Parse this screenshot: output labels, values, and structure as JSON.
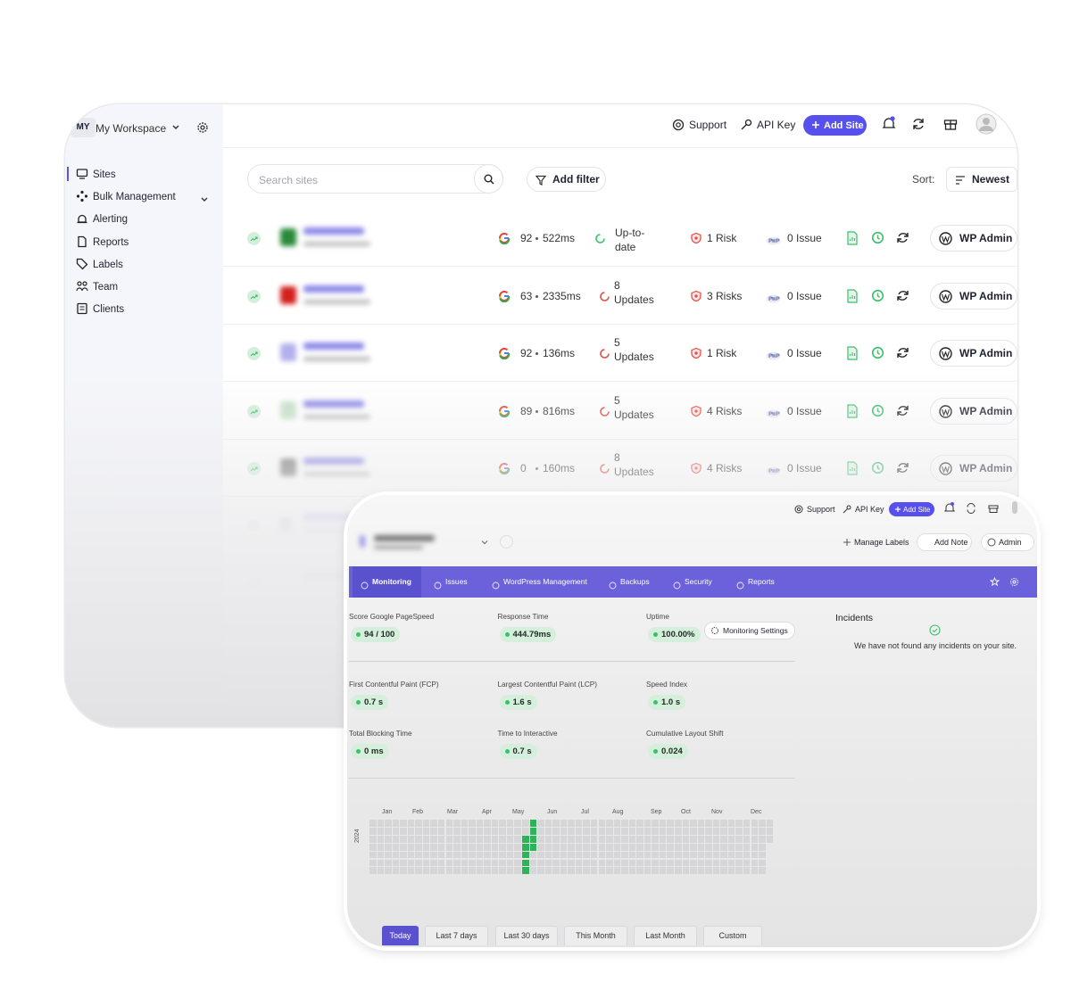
{
  "sidebar": {
    "workspace_badge": "MY",
    "workspace": "My Workspace",
    "nav": [
      "Sites",
      "Bulk Management",
      "Alerting",
      "Reports",
      "Labels",
      "Team",
      "Clients"
    ]
  },
  "topbar": {
    "support": "Support",
    "api_key": "API Key",
    "add_site": "Add Site"
  },
  "toolbar": {
    "search_placeholder": "Search sites",
    "add_filter": "Add filter",
    "sort_label": "Sort:",
    "sort_value": "Newest"
  },
  "sites": [
    {
      "pagespeed": 92,
      "response": "522ms",
      "updates": "Up-to-date",
      "risks": "1 Risk",
      "php": "0 Issue",
      "action": "WP Admin"
    },
    {
      "pagespeed": 63,
      "response": "2335ms",
      "updates": "8 Updates",
      "risks": "3 Risks",
      "php": "0 Issue",
      "action": "WP Admin"
    },
    {
      "pagespeed": 92,
      "response": "136ms",
      "updates": "5 Updates",
      "risks": "1 Risk",
      "php": "0 Issue",
      "action": "WP Admin"
    },
    {
      "pagespeed": 89,
      "response": "816ms",
      "updates": "5 Updates",
      "risks": "4 Risks",
      "php": "0 Issue",
      "action": "WP Admin"
    },
    {
      "pagespeed": 0,
      "response": "160ms",
      "updates": "8 Updates",
      "risks": "4 Risks",
      "php": "0 Issue",
      "action": "WP Admin"
    }
  ],
  "detail": {
    "topbar": {
      "support": "Support",
      "api_key": "API Key",
      "add_site": "Add Site"
    },
    "actions": {
      "manage_labels": "Manage Labels",
      "add_note": "Add Note",
      "admin": "Admin"
    },
    "tabs": [
      "Monitoring",
      "Issues",
      "WordPress Management",
      "Backups",
      "Security",
      "Reports"
    ],
    "metrics": [
      {
        "label": "Score Google PageSpeed",
        "value": "94 / 100"
      },
      {
        "label": "Response Time",
        "value": "444.79ms"
      },
      {
        "label": "Uptime",
        "value": "100.00%"
      },
      {
        "label": "First Contentful Paint (FCP)",
        "value": "0.7 s"
      },
      {
        "label": "Largest Contentful Paint (LCP)",
        "value": "1.6 s"
      },
      {
        "label": "Speed Index",
        "value": "1.0 s"
      },
      {
        "label": "Total Blocking Time",
        "value": "0 ms"
      },
      {
        "label": "Time to Interactive",
        "value": "0.7 s"
      },
      {
        "label": "Cumulative Layout Shift",
        "value": "0.024"
      }
    ],
    "monitoring_settings": "Monitoring Settings",
    "incidents": {
      "title": "Incidents",
      "message": "We have not found any incidents on your site."
    },
    "heatmap": {
      "year": "2024",
      "months": [
        "Jan",
        "Feb",
        "Mar",
        "Apr",
        "May",
        "Jun",
        "Jul",
        "Aug",
        "Sep",
        "Oct",
        "Nov",
        "Dec"
      ]
    },
    "ranges": [
      "Today",
      "Last 7 days",
      "Last 30 days",
      "This Month",
      "Last Month",
      "Custom"
    ]
  }
}
